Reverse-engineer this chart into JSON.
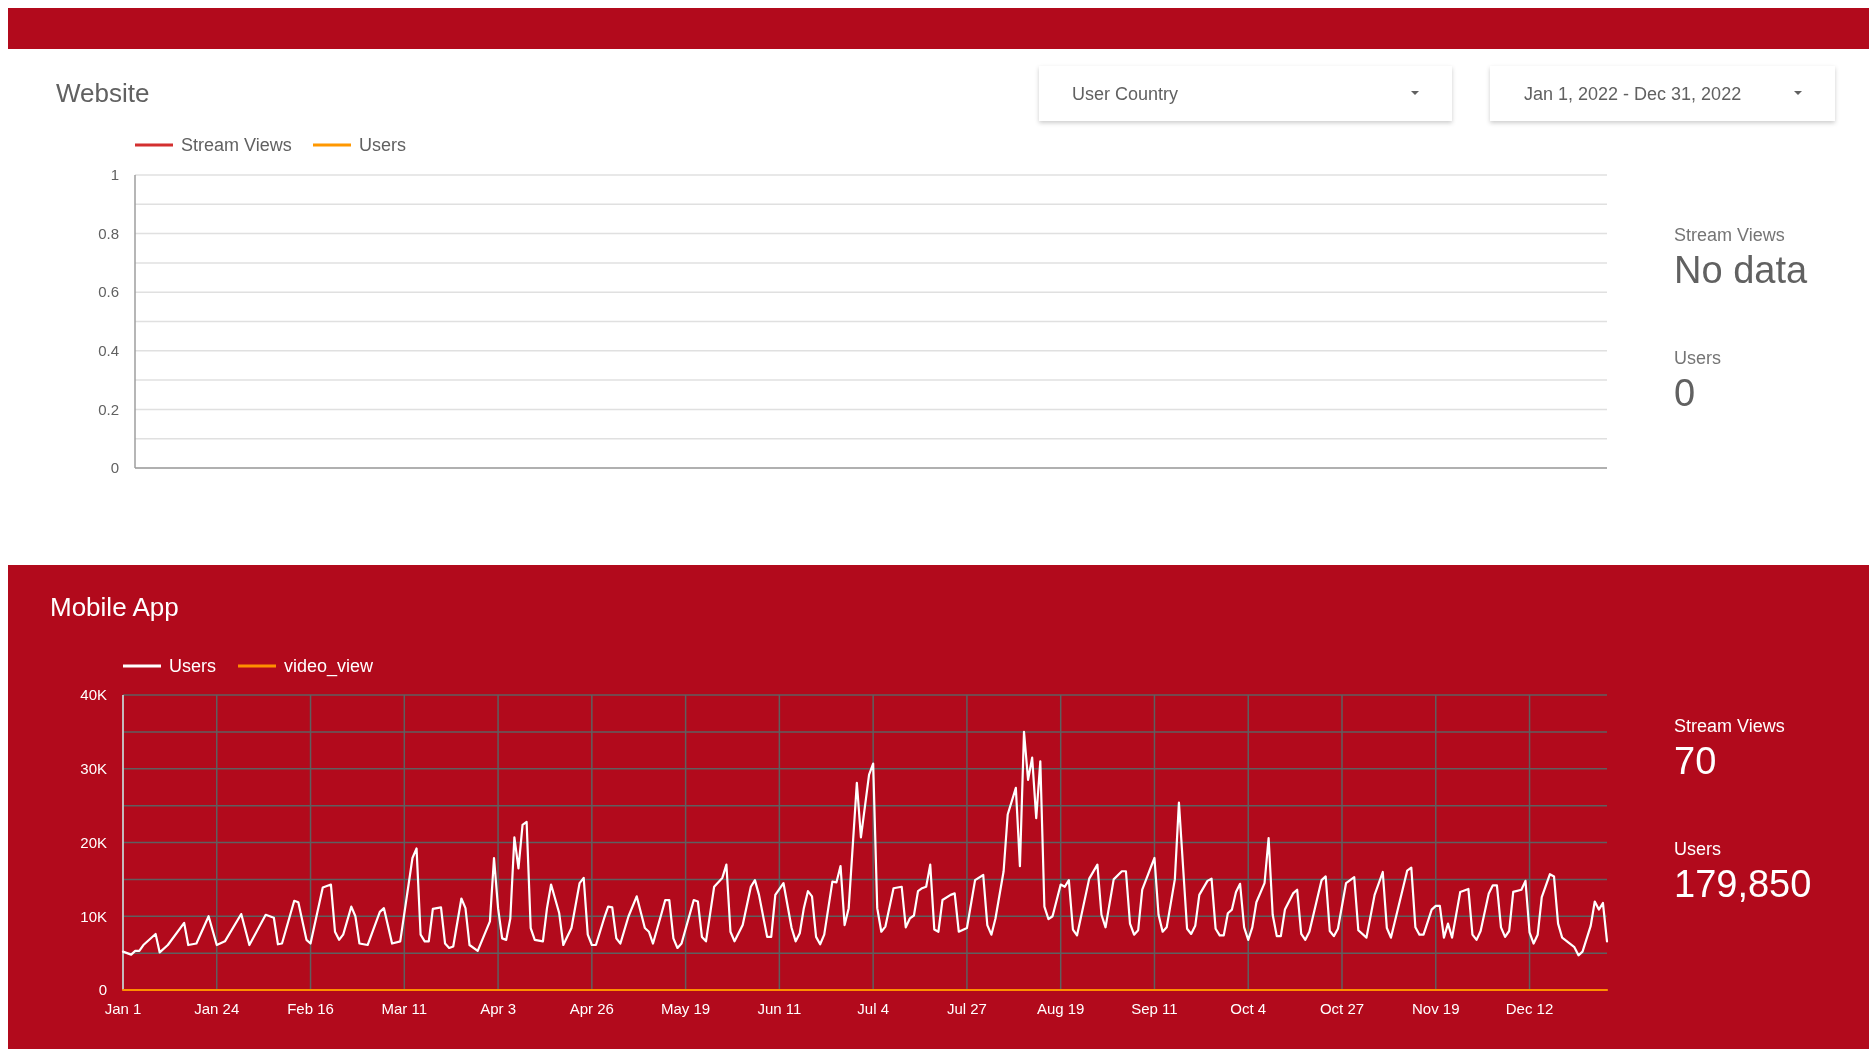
{
  "chart_data": [
    {
      "type": "line",
      "title": "Website",
      "categories": [
        null,
        null
      ],
      "ylim": [
        0,
        1
      ],
      "yticks": [
        0,
        {
          "value": 0.1,
          "label": null
        },
        0.2,
        {
          "value": 0.3,
          "label": null
        },
        0.4,
        {
          "value": 0.5,
          "label": null
        },
        0.6,
        {
          "value": 0.7,
          "label": null
        },
        0.8,
        {
          "value": 0.9,
          "label": null
        },
        1
      ],
      "grid": "y",
      "legend": "top left",
      "series": [
        {
          "name": "Stream Views",
          "color": "#d32f2f",
          "values": [
            null,
            null
          ]
        },
        {
          "name": "Users",
          "color": "#ff9800",
          "values": [
            null,
            null
          ]
        }
      ]
    },
    {
      "type": "other",
      "annotations": [
        "User Country",
        "Jan 1, 2022 - Dec 31, 2022"
      ]
    },
    {
      "type": "other",
      "annotations": [
        "Stream Views",
        "No data",
        "Users",
        "0"
      ]
    },
    {
      "type": "line",
      "title": "Mobile App",
      "xlim": [
        "2022-01-01",
        "2022-12-31"
      ],
      "xticks": [
        {
          "value": "2022-01-01",
          "label": "Jan 1"
        },
        {
          "value": "2022-01-24",
          "label": "Jan 24"
        },
        {
          "value": "2022-02-16",
          "label": "Feb 16"
        },
        {
          "value": "2022-03-11",
          "label": "Mar 11"
        },
        {
          "value": "2022-04-03",
          "label": "Apr 3"
        },
        {
          "value": "2022-04-26",
          "label": "Apr 26"
        },
        {
          "value": "2022-05-19",
          "label": "May 19"
        },
        {
          "value": "2022-06-11",
          "label": "Jun 11"
        },
        {
          "value": "2022-07-04",
          "label": "Jul 4"
        },
        {
          "value": "2022-07-27",
          "label": "Jul 27"
        },
        {
          "value": "2022-08-19",
          "label": "Aug 19"
        },
        {
          "value": "2022-09-11",
          "label": "Sep 11"
        },
        {
          "value": "2022-10-04",
          "label": "Oct 4"
        },
        {
          "value": "2022-10-27",
          "label": "Oct 27"
        },
        {
          "value": "2022-11-19",
          "label": "Nov 19"
        },
        {
          "value": "2022-12-12",
          "label": "Dec 12"
        }
      ],
      "ylim": [
        0,
        40000
      ],
      "yticks": [
        0,
        {
          "value": 5000,
          "label": null
        },
        {
          "value": 10000,
          "label": "10K"
        },
        {
          "value": 15000,
          "label": null
        },
        {
          "value": 20000,
          "label": "20K"
        },
        {
          "value": 25000,
          "label": null
        },
        {
          "value": 30000,
          "label": "30K"
        },
        {
          "value": 35000,
          "label": null
        },
        {
          "value": 40000,
          "label": "40K"
        }
      ],
      "grid": true,
      "legend": "top left",
      "series": [
        {
          "name": "Users",
          "color": "#ffffff",
          "x": [
            "2022-01-01",
            "2022-01-03",
            "2022-01-04",
            "2022-01-05",
            "2022-01-06",
            "2022-01-09",
            "2022-01-10",
            "2022-01-12",
            "2022-01-16",
            "2022-01-17",
            "2022-01-19",
            "2022-01-22",
            "2022-01-24",
            "2022-01-26",
            "2022-01-30",
            "2022-02-01",
            "2022-02-05",
            "2022-02-07",
            "2022-02-08",
            "2022-02-09",
            "2022-02-12",
            "2022-02-13",
            "2022-02-15",
            "2022-02-16",
            "2022-02-19",
            "2022-02-21",
            "2022-02-22",
            "2022-02-23",
            "2022-02-24",
            "2022-02-26",
            "2022-02-27",
            "2022-02-28",
            "2022-03-02",
            "2022-03-05",
            "2022-03-06",
            "2022-03-08",
            "2022-03-10",
            "2022-03-13",
            "2022-03-14",
            "2022-03-15",
            "2022-03-16",
            "2022-03-17",
            "2022-03-18",
            "2022-03-20",
            "2022-03-21",
            "2022-03-22",
            "2022-03-23",
            "2022-03-25",
            "2022-03-26",
            "2022-03-27",
            "2022-03-29",
            "2022-04-01",
            "2022-04-02",
            "2022-04-03",
            "2022-04-04",
            "2022-04-05",
            "2022-04-06",
            "2022-04-07",
            "2022-04-08",
            "2022-04-09",
            "2022-04-10",
            "2022-04-11",
            "2022-04-12",
            "2022-04-14",
            "2022-04-15",
            "2022-04-16",
            "2022-04-18",
            "2022-04-19",
            "2022-04-21",
            "2022-04-23",
            "2022-04-24",
            "2022-04-25",
            "2022-04-26",
            "2022-04-27",
            "2022-04-29",
            "2022-04-30",
            "2022-05-01",
            "2022-05-02",
            "2022-05-03",
            "2022-05-05",
            "2022-05-07",
            "2022-05-09",
            "2022-05-10",
            "2022-05-11",
            "2022-05-13",
            "2022-05-14",
            "2022-05-15",
            "2022-05-16",
            "2022-05-17",
            "2022-05-18",
            "2022-05-21",
            "2022-05-22",
            "2022-05-23",
            "2022-05-24",
            "2022-05-26",
            "2022-05-28",
            "2022-05-29",
            "2022-05-30",
            "2022-05-31",
            "2022-06-02",
            "2022-06-04",
            "2022-06-05",
            "2022-06-06",
            "2022-06-08",
            "2022-06-09",
            "2022-06-10",
            "2022-06-12",
            "2022-06-14",
            "2022-06-15",
            "2022-06-16",
            "2022-06-17",
            "2022-06-18",
            "2022-06-19",
            "2022-06-20",
            "2022-06-21",
            "2022-06-22",
            "2022-06-24",
            "2022-06-25",
            "2022-06-26",
            "2022-06-27",
            "2022-06-28",
            "2022-06-30",
            "2022-07-01",
            "2022-07-03",
            "2022-07-04",
            "2022-07-05",
            "2022-07-06",
            "2022-07-07",
            "2022-07-09",
            "2022-07-11",
            "2022-07-12",
            "2022-07-13",
            "2022-07-14",
            "2022-07-15",
            "2022-07-16",
            "2022-07-17",
            "2022-07-18",
            "2022-07-19",
            "2022-07-20",
            "2022-07-21",
            "2022-07-23",
            "2022-07-24",
            "2022-07-25",
            "2022-07-27",
            "2022-07-29",
            "2022-07-31",
            "2022-08-01",
            "2022-08-02",
            "2022-08-03",
            "2022-08-05",
            "2022-08-06",
            "2022-08-08",
            "2022-08-09",
            "2022-08-10",
            "2022-08-11",
            "2022-08-12",
            "2022-08-13",
            "2022-08-14",
            "2022-08-15",
            "2022-08-16",
            "2022-08-17",
            "2022-08-19",
            "2022-08-20",
            "2022-08-21",
            "2022-08-22",
            "2022-08-23",
            "2022-08-26",
            "2022-08-28",
            "2022-08-29",
            "2022-08-30",
            "2022-09-01",
            "2022-09-03",
            "2022-09-04",
            "2022-09-05",
            "2022-09-06",
            "2022-09-07",
            "2022-09-08",
            "2022-09-10",
            "2022-09-11",
            "2022-09-12",
            "2022-09-13",
            "2022-09-14",
            "2022-09-16",
            "2022-09-17",
            "2022-09-19",
            "2022-09-20",
            "2022-09-21",
            "2022-09-22",
            "2022-09-24",
            "2022-09-25",
            "2022-09-26",
            "2022-09-27",
            "2022-09-28",
            "2022-09-29",
            "2022-09-30",
            "2022-10-01",
            "2022-10-02",
            "2022-10-03",
            "2022-10-04",
            "2022-10-05",
            "2022-10-06",
            "2022-10-08",
            "2022-10-09",
            "2022-10-10",
            "2022-10-11",
            "2022-10-12",
            "2022-10-13",
            "2022-10-15",
            "2022-10-16",
            "2022-10-17",
            "2022-10-18",
            "2022-10-19",
            "2022-10-22",
            "2022-10-23",
            "2022-10-24",
            "2022-10-25",
            "2022-10-26",
            "2022-10-28",
            "2022-10-30",
            "2022-10-31",
            "2022-11-02",
            "2022-11-04",
            "2022-11-06",
            "2022-11-07",
            "2022-11-08",
            "2022-11-12",
            "2022-11-13",
            "2022-11-14",
            "2022-11-15",
            "2022-11-16",
            "2022-11-18",
            "2022-11-19",
            "2022-11-20",
            "2022-11-21",
            "2022-11-22",
            "2022-11-23",
            "2022-11-25",
            "2022-11-27",
            "2022-11-28",
            "2022-11-29",
            "2022-11-30",
            "2022-12-02",
            "2022-12-03",
            "2022-12-04",
            "2022-12-05",
            "2022-12-06",
            "2022-12-07",
            "2022-12-08",
            "2022-12-10",
            "2022-12-11",
            "2022-12-12",
            "2022-12-13",
            "2022-12-14",
            "2022-12-15",
            "2022-12-17",
            "2022-12-18",
            "2022-12-19",
            "2022-12-20",
            "2022-12-23",
            "2022-12-24",
            "2022-12-25",
            "2022-12-27",
            "2022-12-28",
            "2022-12-29",
            "2022-12-30",
            "2022-12-31"
          ],
          "values": [
            5200,
            4800,
            5300,
            5300,
            6100,
            7600,
            5100,
            6100,
            9100,
            6100,
            6300,
            10000,
            6100,
            6600,
            10300,
            6100,
            10200,
            9800,
            6200,
            6300,
            12100,
            11900,
            6800,
            6300,
            13900,
            14300,
            7900,
            6800,
            7500,
            11300,
            10000,
            6300,
            6100,
            10600,
            11100,
            6300,
            6600,
            17900,
            19200,
            7500,
            6600,
            6600,
            11000,
            11200,
            6300,
            5700,
            5900,
            12400,
            11100,
            6100,
            5300,
            9300,
            17900,
            11100,
            7000,
            6800,
            9700,
            20700,
            16500,
            22400,
            22800,
            8400,
            6800,
            6600,
            11100,
            14300,
            10400,
            6100,
            8400,
            14500,
            15200,
            7500,
            6100,
            6100,
            9700,
            11300,
            11200,
            7000,
            6300,
            10000,
            12700,
            8400,
            7900,
            6300,
            10200,
            12200,
            12200,
            7000,
            5700,
            6300,
            12200,
            12000,
            7200,
            6600,
            14000,
            15200,
            17000,
            7900,
            6600,
            8800,
            14000,
            14900,
            12900,
            7200,
            7200,
            12900,
            14500,
            8400,
            6600,
            7700,
            11100,
            13400,
            12700,
            7200,
            6200,
            7500,
            14700,
            14600,
            16800,
            8800,
            11100,
            28100,
            20700,
            29200,
            30700,
            11100,
            7900,
            8600,
            13800,
            14000,
            8500,
            9700,
            10100,
            13400,
            13800,
            14000,
            17000,
            8200,
            7900,
            12200,
            12900,
            13100,
            7900,
            8400,
            14900,
            15600,
            8800,
            7500,
            9700,
            16100,
            23800,
            27400,
            16800,
            35000,
            28500,
            31500,
            23300,
            31000,
            11300,
            9600,
            10000,
            14300,
            14000,
            14900,
            8200,
            7400,
            15100,
            17000,
            10200,
            8500,
            15000,
            16100,
            16100,
            9000,
            7500,
            8100,
            13600,
            16500,
            17900,
            10200,
            7900,
            8500,
            15000,
            25400,
            8300,
            7600,
            8700,
            12900,
            14800,
            15100,
            8300,
            7400,
            7400,
            10400,
            10900,
            13300,
            14400,
            8500,
            6800,
            8500,
            11900,
            14500,
            20600,
            10200,
            7300,
            7300,
            10900,
            13100,
            13600,
            7600,
            6800,
            7900,
            14900,
            15400,
            8000,
            7300,
            8300,
            14500,
            15300,
            8100,
            7100,
            12900,
            16000,
            8400,
            7100,
            16200,
            16600,
            8500,
            7500,
            7500,
            10900,
            11400,
            11400,
            7100,
            9000,
            7100,
            13300,
            13700,
            7500,
            6800,
            8000,
            13100,
            14200,
            14200,
            8500,
            7200,
            8000,
            13300,
            13600,
            14800,
            7800,
            6300,
            7500,
            12600,
            15700,
            15400,
            9000,
            7100,
            5800,
            4700,
            5200,
            8700,
            12000,
            10900,
            11800,
            6600
          ]
        },
        {
          "name": "video_view",
          "color": "#ff8f00",
          "x": [
            "2022-01-01",
            "2022-12-31"
          ],
          "values": [
            0,
            0
          ]
        }
      ]
    },
    {
      "type": "other",
      "annotations": [
        "Stream Views",
        "70",
        "Users",
        "179,850"
      ]
    }
  ]
}
